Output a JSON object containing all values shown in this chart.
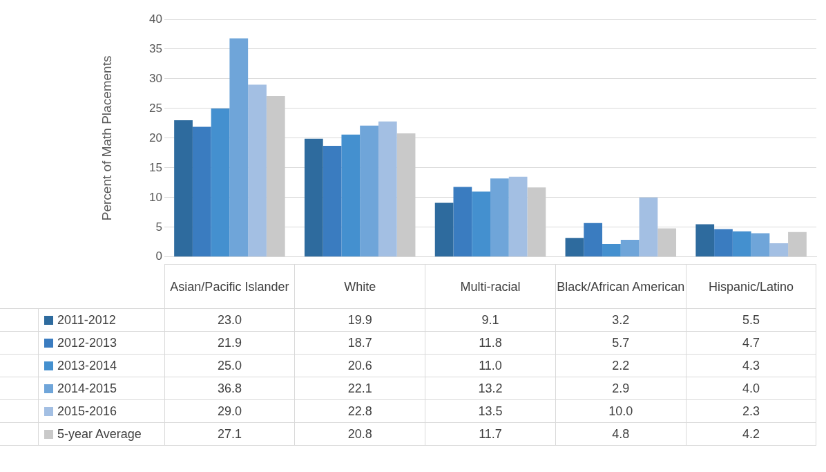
{
  "chart_data": {
    "type": "bar",
    "ylabel": "Percent of Math Placements",
    "categories": [
      "Asian/Pacific Islander",
      "White",
      "Multi-racial",
      "Black/African American",
      "Hispanic/Latino"
    ],
    "series": [
      {
        "name": "2011-2012",
        "color": "#2e6b9e",
        "values": [
          23.0,
          19.9,
          9.1,
          3.2,
          5.5
        ],
        "value_labels": [
          "23.0",
          "19.9",
          "9.1",
          "3.2",
          "5.5"
        ]
      },
      {
        "name": "2012-2013",
        "color": "#3a7cc0",
        "values": [
          21.9,
          18.7,
          11.8,
          5.7,
          4.7
        ],
        "value_labels": [
          "21.9",
          "18.7",
          "11.8",
          "5.7",
          "4.7"
        ]
      },
      {
        "name": "2013-2014",
        "color": "#4490cf",
        "values": [
          25.0,
          20.6,
          11.0,
          2.2,
          4.3
        ],
        "value_labels": [
          "25.0",
          "20.6",
          "11.0",
          "2.2",
          "4.3"
        ]
      },
      {
        "name": "2014-2015",
        "color": "#6fa5d9",
        "values": [
          36.8,
          22.1,
          13.2,
          2.9,
          4.0
        ],
        "value_labels": [
          "36.8",
          "22.1",
          "13.2",
          "2.9",
          "4.0"
        ]
      },
      {
        "name": "2015-2016",
        "color": "#a3bfe3",
        "values": [
          29.0,
          22.8,
          13.5,
          10.0,
          2.3
        ],
        "value_labels": [
          "29.0",
          "22.8",
          "13.5",
          "10.0",
          "2.3"
        ]
      },
      {
        "name": "5-year Average",
        "color": "#c9c9c9",
        "values": [
          27.1,
          20.8,
          11.7,
          4.8,
          4.2
        ],
        "value_labels": [
          "27.1",
          "20.8",
          "11.7",
          "4.8",
          "4.2"
        ]
      }
    ],
    "ylim": [
      0,
      40
    ],
    "yticks": [
      0,
      5,
      10,
      15,
      20,
      25,
      30,
      35,
      40
    ],
    "grid": "y",
    "legend": "bottom left"
  }
}
